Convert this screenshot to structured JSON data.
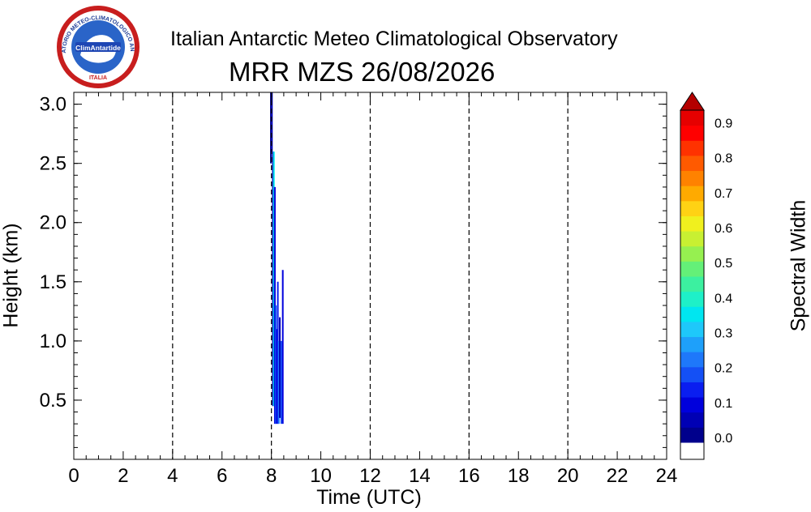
{
  "logo": {
    "outer_text": "OSSERVATORIO METEO-CLIMATOLOGICO ANTARTICO",
    "inner_text": "ClimAntartide",
    "bottom_text": "ITALIA"
  },
  "header": {
    "title": "Italian Antarctic Meteo Climatological Observatory",
    "subtitle": "MRR MZS 26/08/2026"
  },
  "colorbar": {
    "label": "Spectral Width",
    "ticks": [
      "0.0",
      "0.1",
      "0.2",
      "0.3",
      "0.4",
      "0.5",
      "0.6",
      "0.7",
      "0.8",
      "0.9"
    ],
    "colors": [
      "#00008c",
      "#0000b4",
      "#0000dc",
      "#0a1ef0",
      "#1450f5",
      "#1e78fa",
      "#1ea0fa",
      "#1ec8fa",
      "#00e6f0",
      "#1ef0c8",
      "#3cf0a0",
      "#64f078",
      "#96f050",
      "#c8f032",
      "#f0f01e",
      "#ffd214",
      "#ffaa00",
      "#ff8200",
      "#ff5a00",
      "#ff3200",
      "#ff0000",
      "#e60000"
    ],
    "top_arrow_color": "#b40000"
  },
  "chart_data": {
    "type": "heatmap",
    "title": "Italian Antarctic Meteo Climatological Observatory",
    "subtitle": "MRR MZS 26/08/2026",
    "xlabel": "Time (UTC)",
    "ylabel": "Height (km)",
    "xlim": [
      0,
      24
    ],
    "ylim": [
      0,
      3.1
    ],
    "xticks": [
      "0",
      "2",
      "4",
      "6",
      "8",
      "10",
      "12",
      "14",
      "16",
      "18",
      "20",
      "22",
      "24"
    ],
    "yticks": [
      "0.5",
      "1.0",
      "1.5",
      "2.0",
      "2.5",
      "3.0"
    ],
    "dashed_vlines": [
      4,
      8,
      12,
      16,
      20
    ],
    "colorbar_label": "Spectral Width",
    "colorbar_range": [
      0.0,
      0.95
    ],
    "echo_columns": [
      {
        "t": 7.98,
        "h0": 2.5,
        "h1": 3.1,
        "value": 0.02
      },
      {
        "t": 8.02,
        "h0": 2.6,
        "h1": 3.1,
        "value": 0.05
      },
      {
        "t": 8.06,
        "h0": 0.45,
        "h1": 2.6,
        "value": 0.08
      },
      {
        "t": 8.1,
        "h0": 0.45,
        "h1": 2.6,
        "value": 0.35
      },
      {
        "t": 8.14,
        "h0": 0.3,
        "h1": 2.3,
        "value": 0.12
      },
      {
        "t": 8.18,
        "h0": 0.3,
        "h1": 1.3,
        "value": 0.2
      },
      {
        "t": 8.22,
        "h0": 0.3,
        "h1": 1.1,
        "value": 0.1
      },
      {
        "t": 8.26,
        "h0": 0.3,
        "h1": 1.5,
        "value": 0.15
      },
      {
        "t": 8.3,
        "h0": 0.3,
        "h1": 1.0,
        "value": 0.25
      },
      {
        "t": 8.34,
        "h0": 0.35,
        "h1": 1.2,
        "value": 0.05
      },
      {
        "t": 8.4,
        "h0": 0.3,
        "h1": 1.0,
        "value": 0.18
      },
      {
        "t": 8.46,
        "h0": 0.3,
        "h1": 1.6,
        "value": 0.1
      }
    ]
  }
}
